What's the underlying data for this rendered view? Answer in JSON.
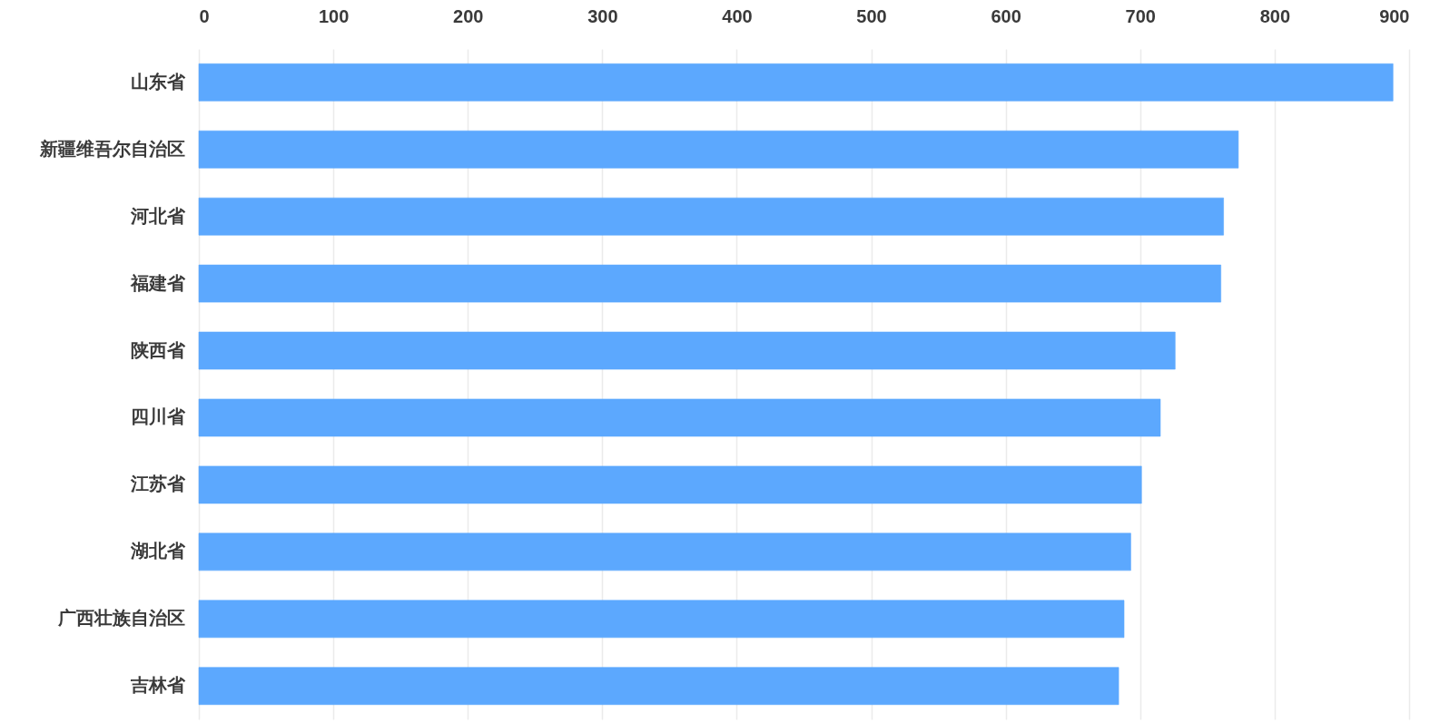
{
  "chart_data": {
    "type": "bar",
    "orientation": "horizontal",
    "categories": [
      "山东省",
      "新疆维吾尔自治区",
      "河北省",
      "福建省",
      "陕西省",
      "四川省",
      "江苏省",
      "湖北省",
      "广西壮族自治区",
      "吉林省"
    ],
    "values": [
      888,
      773,
      762,
      760,
      726,
      715,
      701,
      693,
      688,
      684
    ],
    "color": "#5ca8fe",
    "xlim": [
      0,
      900
    ],
    "xticks": [
      0,
      100,
      200,
      300,
      400,
      500,
      600,
      700,
      800,
      900
    ],
    "grid": "x"
  }
}
